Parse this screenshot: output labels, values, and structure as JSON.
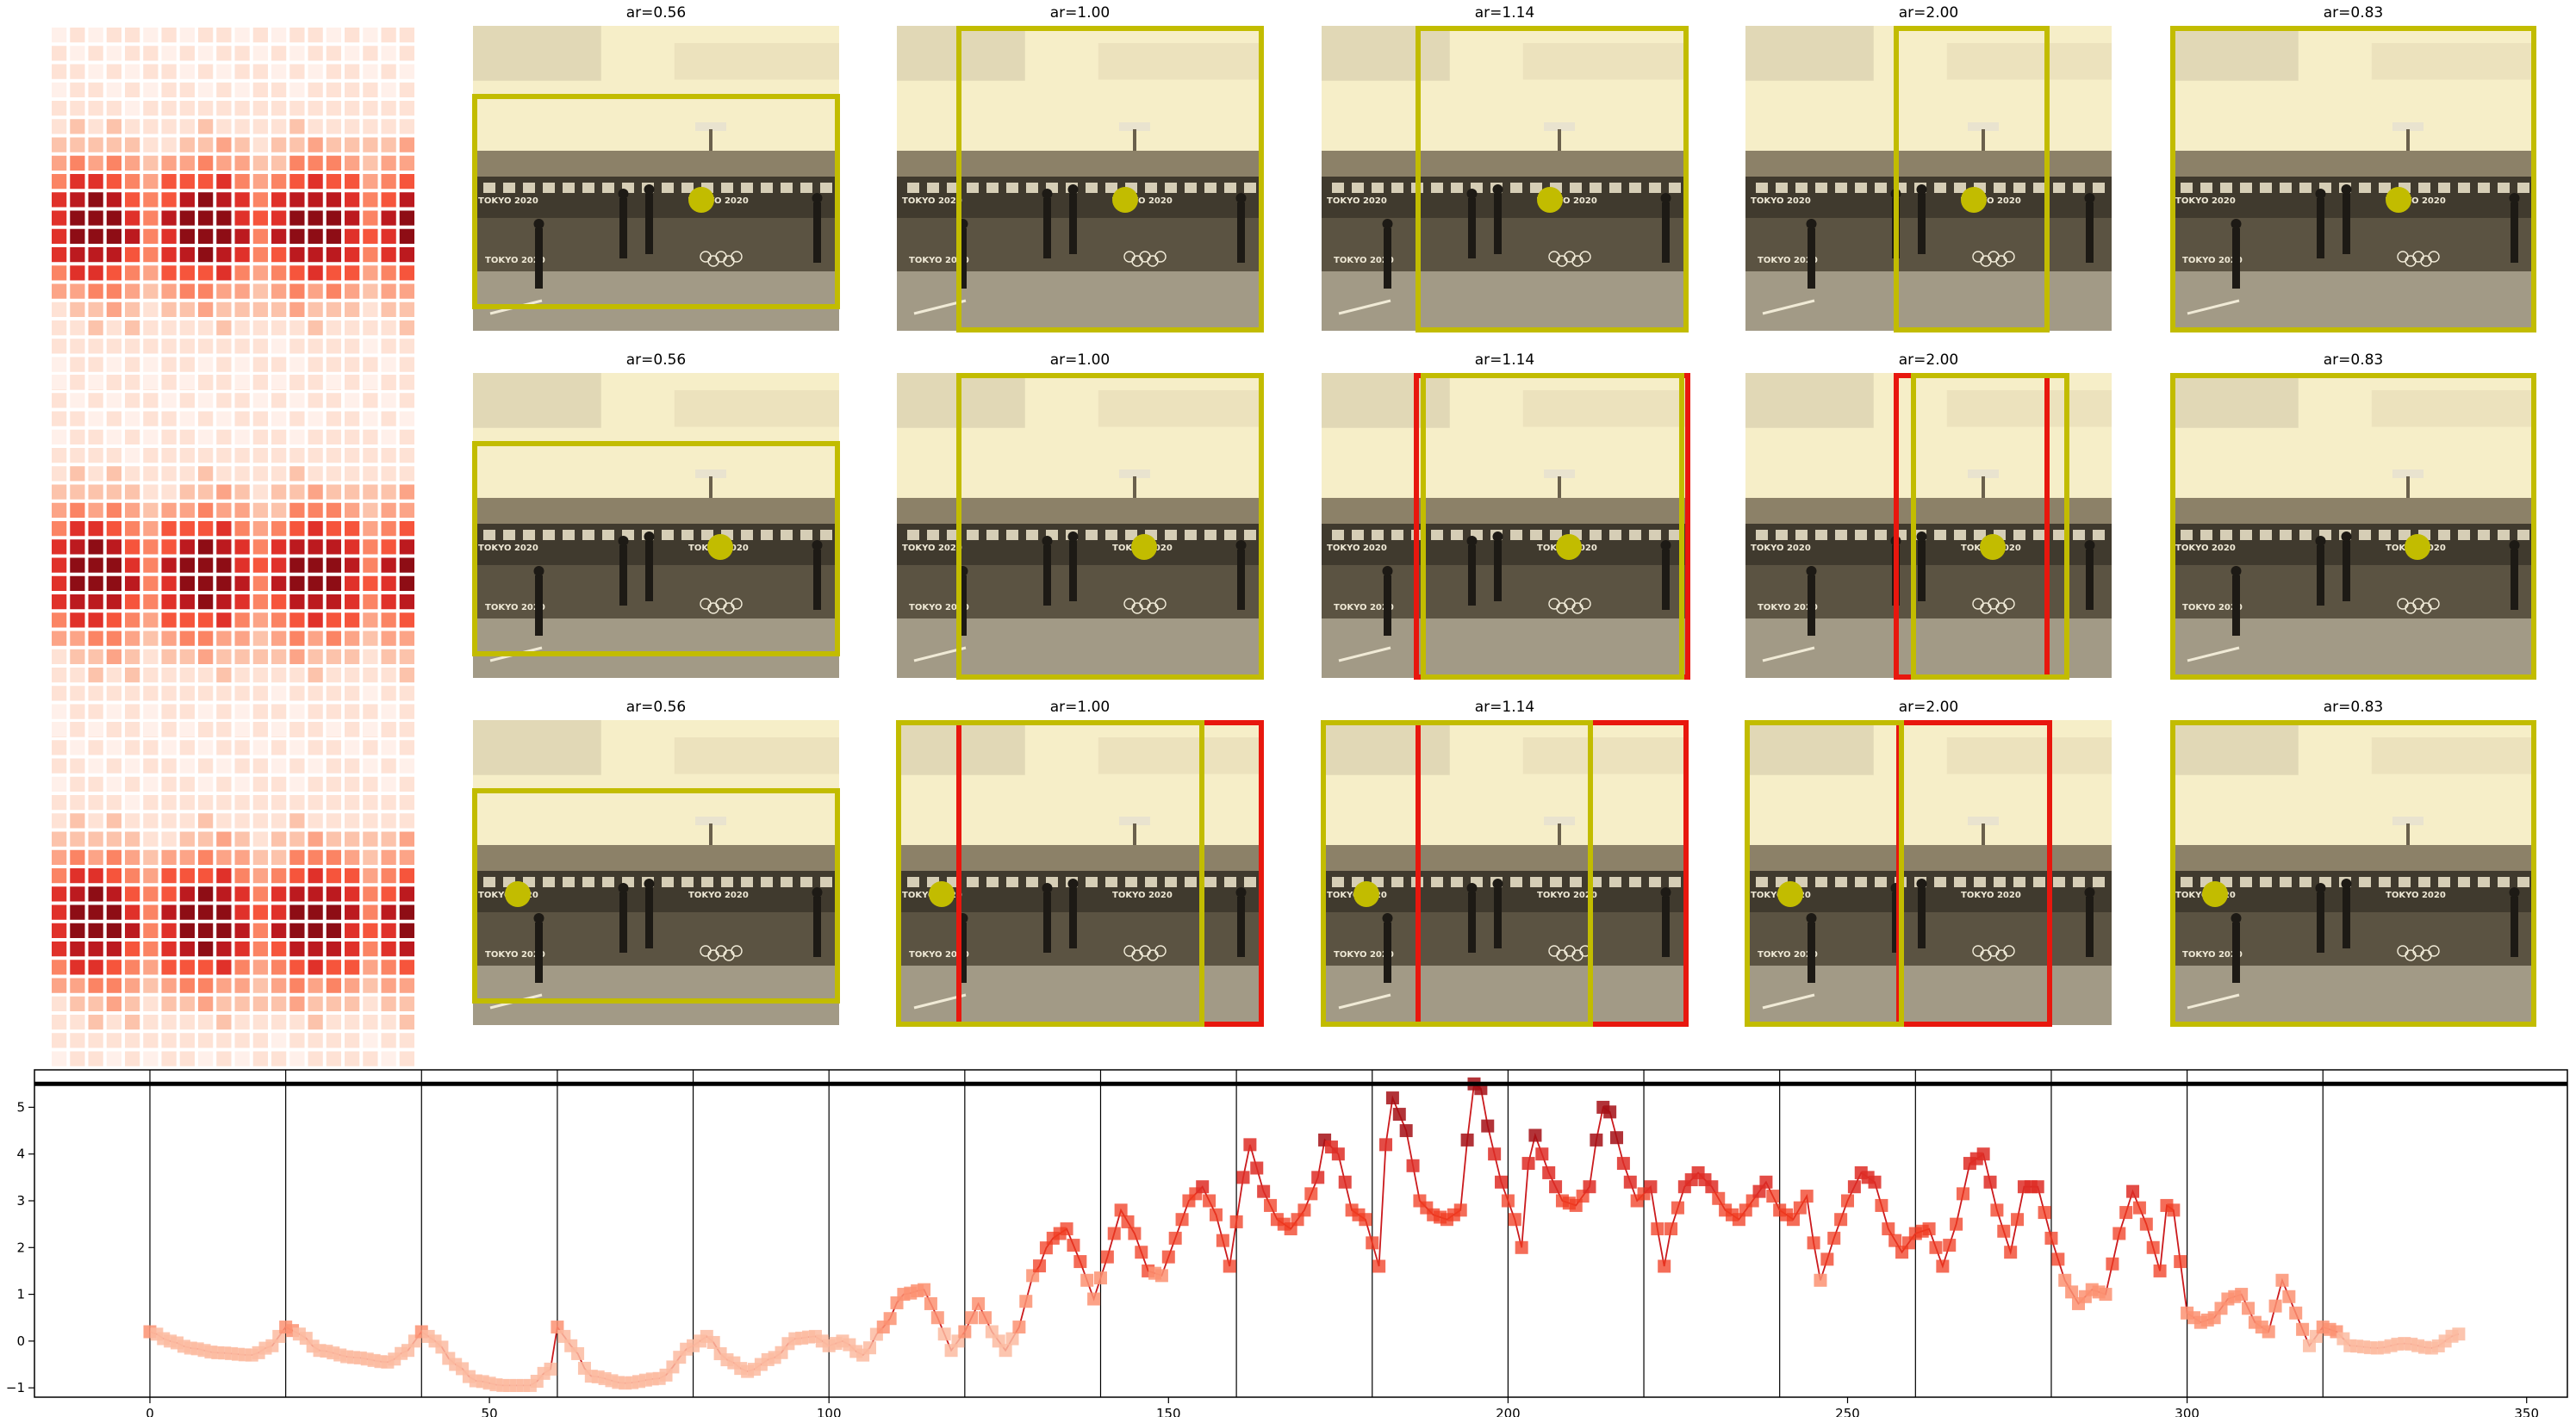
{
  "panels": {
    "titles": [
      [
        "ar=0.56",
        "ar=1.00",
        "ar=1.14",
        "ar=2.00",
        "ar=0.83"
      ],
      [
        "ar=0.56",
        "ar=1.00",
        "ar=1.14",
        "ar=2.00",
        "ar=0.83"
      ],
      [
        "ar=0.56",
        "ar=1.00",
        "ar=1.14",
        "ar=2.00",
        "ar=0.83"
      ]
    ],
    "banner_text": "TOKYO 2020",
    "colors": {
      "accept": "#c2bc00",
      "reject": "#e8170e",
      "dot": "#c2bc00"
    }
  },
  "chart_data": {
    "type": "line",
    "xlim": [
      -17,
      356
    ],
    "ylim": [
      -1.2,
      5.8
    ],
    "xticks": [
      0,
      50,
      100,
      150,
      200,
      250,
      300,
      350
    ],
    "yticks": [
      -1,
      0,
      1,
      2,
      3,
      4,
      5
    ],
    "threshold": 5.5,
    "vlines": [
      0,
      20,
      40,
      60,
      80,
      100,
      120,
      140,
      160,
      180,
      200,
      220,
      240,
      260,
      280,
      300,
      320
    ],
    "line_color": "#cb1a1d",
    "keypoints": [
      [
        0,
        0.2
      ],
      [
        3,
        0.0
      ],
      [
        6,
        -0.15
      ],
      [
        10,
        -0.25
      ],
      [
        15,
        -0.3
      ],
      [
        18,
        -0.1
      ],
      [
        20,
        0.3
      ],
      [
        22,
        0.15
      ],
      [
        25,
        -0.2
      ],
      [
        30,
        -0.35
      ],
      [
        35,
        -0.45
      ],
      [
        38,
        -0.2
      ],
      [
        40,
        0.2
      ],
      [
        42,
        0.0
      ],
      [
        45,
        -0.5
      ],
      [
        48,
        -0.85
      ],
      [
        52,
        -0.95
      ],
      [
        56,
        -0.95
      ],
      [
        59,
        -0.6
      ],
      [
        60,
        0.3
      ],
      [
        62,
        -0.1
      ],
      [
        65,
        -0.75
      ],
      [
        70,
        -0.9
      ],
      [
        75,
        -0.8
      ],
      [
        80,
        -0.1
      ],
      [
        82,
        0.1
      ],
      [
        85,
        -0.4
      ],
      [
        88,
        -0.65
      ],
      [
        92,
        -0.35
      ],
      [
        95,
        0.05
      ],
      [
        98,
        0.1
      ],
      [
        100,
        -0.1
      ],
      [
        102,
        0.0
      ],
      [
        105,
        -0.3
      ],
      [
        108,
        0.3
      ],
      [
        111,
        1.0
      ],
      [
        114,
        1.1
      ],
      [
        116,
        0.5
      ],
      [
        118,
        -0.2
      ],
      [
        120,
        0.2
      ],
      [
        122,
        0.8
      ],
      [
        124,
        0.2
      ],
      [
        126,
        -0.2
      ],
      [
        128,
        0.3
      ],
      [
        130,
        1.4
      ],
      [
        133,
        2.2
      ],
      [
        135,
        2.4
      ],
      [
        137,
        1.7
      ],
      [
        139,
        0.9
      ],
      [
        141,
        1.8
      ],
      [
        143,
        2.8
      ],
      [
        145,
        2.3
      ],
      [
        147,
        1.5
      ],
      [
        149,
        1.4
      ],
      [
        151,
        2.2
      ],
      [
        153,
        3.0
      ],
      [
        155,
        3.3
      ],
      [
        157,
        2.7
      ],
      [
        159,
        1.6
      ],
      [
        161,
        3.5
      ],
      [
        162,
        4.2
      ],
      [
        164,
        3.2
      ],
      [
        166,
        2.6
      ],
      [
        168,
        2.4
      ],
      [
        170,
        2.8
      ],
      [
        172,
        3.5
      ],
      [
        173,
        4.3
      ],
      [
        175,
        4.0
      ],
      [
        177,
        2.8
      ],
      [
        179,
        2.6
      ],
      [
        181,
        1.6
      ],
      [
        182,
        4.2
      ],
      [
        183,
        5.2
      ],
      [
        185,
        4.5
      ],
      [
        187,
        3.0
      ],
      [
        189,
        2.7
      ],
      [
        191,
        2.6
      ],
      [
        193,
        2.8
      ],
      [
        194,
        4.3
      ],
      [
        195,
        5.5
      ],
      [
        196,
        5.4
      ],
      [
        197,
        4.6
      ],
      [
        199,
        3.4
      ],
      [
        201,
        2.6
      ],
      [
        202,
        2.0
      ],
      [
        203,
        3.8
      ],
      [
        204,
        4.4
      ],
      [
        206,
        3.6
      ],
      [
        208,
        3.0
      ],
      [
        210,
        2.9
      ],
      [
        212,
        3.3
      ],
      [
        213,
        4.3
      ],
      [
        214,
        5.0
      ],
      [
        215,
        4.9
      ],
      [
        217,
        3.8
      ],
      [
        219,
        3.0
      ],
      [
        221,
        3.3
      ],
      [
        222,
        2.4
      ],
      [
        223,
        1.6
      ],
      [
        224,
        2.4
      ],
      [
        226,
        3.3
      ],
      [
        228,
        3.6
      ],
      [
        230,
        3.3
      ],
      [
        232,
        2.8
      ],
      [
        234,
        2.6
      ],
      [
        236,
        3.0
      ],
      [
        238,
        3.4
      ],
      [
        240,
        2.8
      ],
      [
        242,
        2.6
      ],
      [
        244,
        3.1
      ],
      [
        245,
        2.1
      ],
      [
        246,
        1.3
      ],
      [
        248,
        2.2
      ],
      [
        250,
        3.0
      ],
      [
        252,
        3.6
      ],
      [
        254,
        3.4
      ],
      [
        256,
        2.4
      ],
      [
        258,
        1.9
      ],
      [
        260,
        2.3
      ],
      [
        262,
        2.4
      ],
      [
        264,
        1.6
      ],
      [
        266,
        2.5
      ],
      [
        268,
        3.8
      ],
      [
        270,
        4.0
      ],
      [
        272,
        2.8
      ],
      [
        274,
        1.9
      ],
      [
        276,
        3.3
      ],
      [
        278,
        3.3
      ],
      [
        280,
        2.2
      ],
      [
        282,
        1.3
      ],
      [
        284,
        0.8
      ],
      [
        286,
        1.1
      ],
      [
        288,
        1.0
      ],
      [
        290,
        2.3
      ],
      [
        292,
        3.2
      ],
      [
        294,
        2.5
      ],
      [
        296,
        1.5
      ],
      [
        297,
        2.9
      ],
      [
        298,
        2.8
      ],
      [
        300,
        0.6
      ],
      [
        302,
        0.4
      ],
      [
        304,
        0.5
      ],
      [
        306,
        0.9
      ],
      [
        308,
        1.0
      ],
      [
        310,
        0.4
      ],
      [
        312,
        0.2
      ],
      [
        314,
        1.3
      ],
      [
        316,
        0.6
      ],
      [
        318,
        -0.1
      ],
      [
        320,
        0.3
      ],
      [
        322,
        0.2
      ],
      [
        324,
        -0.1
      ],
      [
        328,
        -0.15
      ],
      [
        332,
        -0.05
      ],
      [
        336,
        -0.15
      ],
      [
        340,
        0.15
      ]
    ]
  }
}
